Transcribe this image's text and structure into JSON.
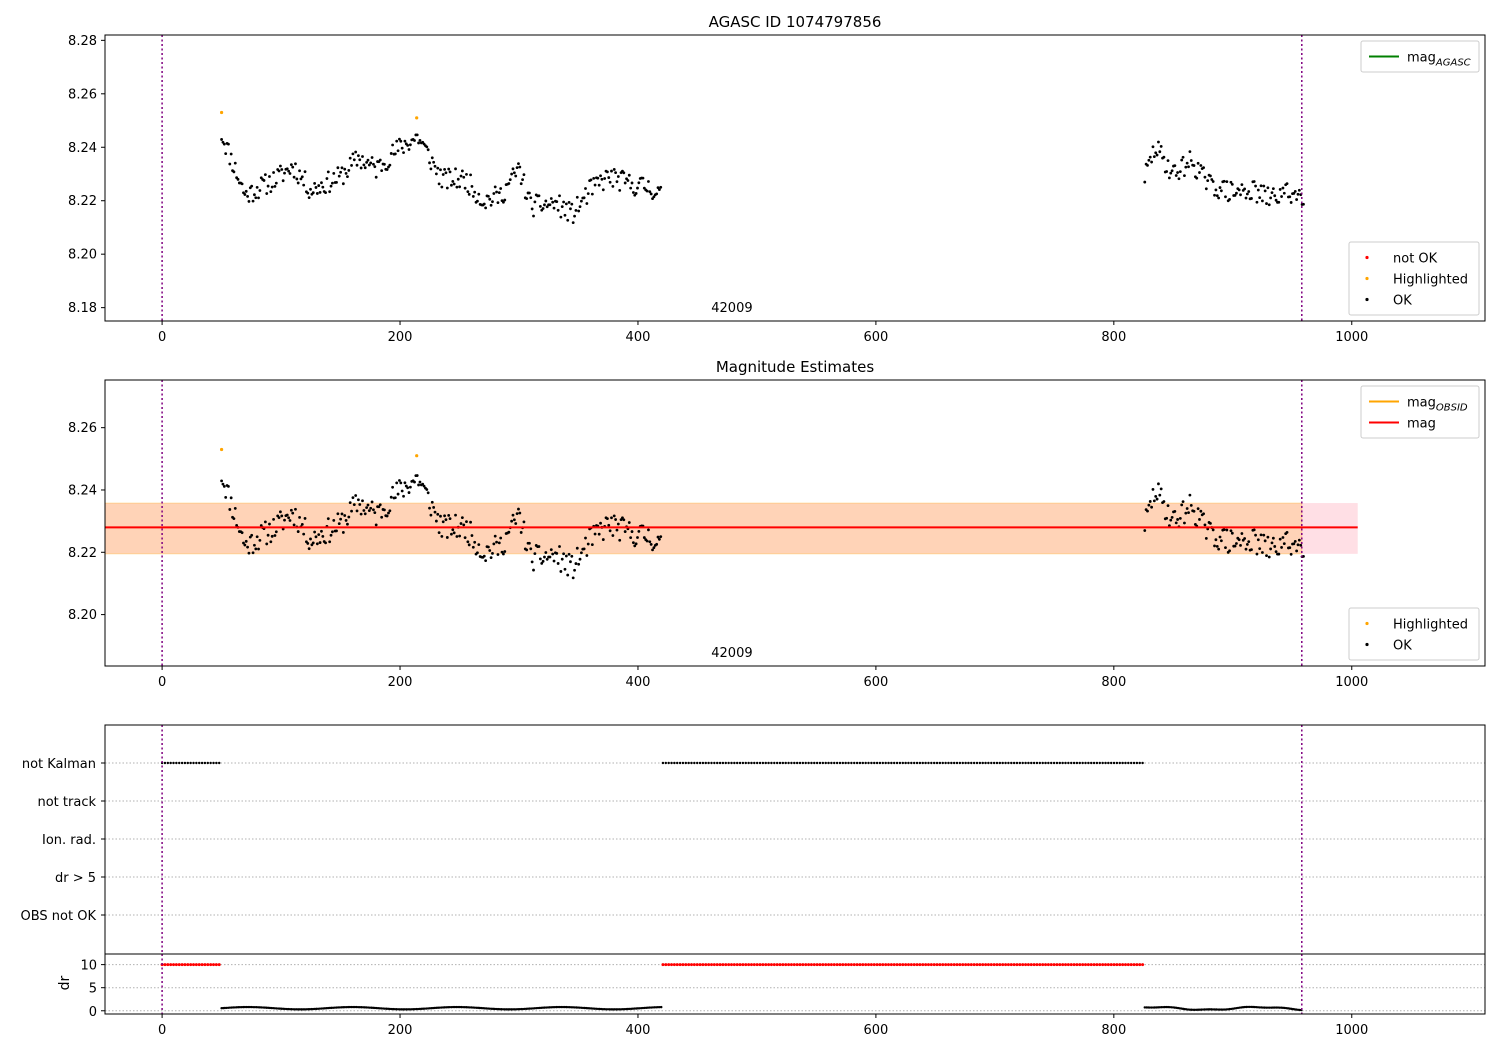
{
  "figure_title": "AGASC ID 1074797856",
  "chart_data": [
    {
      "id": "panel1",
      "type": "scatter",
      "title": "AGASC ID 1074797856",
      "xlim": [
        -48,
        1112
      ],
      "ylim": [
        8.175,
        8.282
      ],
      "xticks": [
        0,
        200,
        400,
        600,
        800,
        1000
      ],
      "yticks": [
        8.18,
        8.2,
        8.22,
        8.24,
        8.26,
        8.28
      ],
      "ytick_decimals": 2,
      "vlines": [
        0,
        958
      ],
      "obsid_label": {
        "text": "42009",
        "x": 479
      },
      "legend_top": {
        "placement": "upper right",
        "entries": [
          {
            "label": "mag",
            "sub": "AGASC",
            "color": "#008000"
          }
        ]
      },
      "legend_bottom": {
        "placement": "lower right",
        "entries": [
          {
            "label": "not OK",
            "color": "#ff0000"
          },
          {
            "label": "Highlighted",
            "color": "#ffa500"
          },
          {
            "label": "OK",
            "color": "#000000"
          }
        ]
      },
      "highlighted": [
        [
          50,
          8.253
        ],
        [
          214,
          8.251
        ]
      ],
      "ok_segments": [
        {
          "x0": 50,
          "x1": 420,
          "anchors": [
            [
              50,
              8.245
            ],
            [
              70,
              8.222
            ],
            [
              95,
              8.228
            ],
            [
              110,
              8.233
            ],
            [
              125,
              8.224
            ],
            [
              150,
              8.229
            ],
            [
              165,
              8.236
            ],
            [
              180,
              8.232
            ],
            [
              200,
              8.24
            ],
            [
              215,
              8.244
            ],
            [
              235,
              8.228
            ],
            [
              255,
              8.228
            ],
            [
              270,
              8.22
            ],
            [
              285,
              8.222
            ],
            [
              300,
              8.232
            ],
            [
              310,
              8.218
            ],
            [
              330,
              8.219
            ],
            [
              345,
              8.215
            ],
            [
              360,
              8.224
            ],
            [
              375,
              8.229
            ],
            [
              395,
              8.226
            ],
            [
              410,
              8.225
            ],
            [
              420,
              8.222
            ]
          ],
          "noise": 0.004,
          "seed": 11
        },
        {
          "x0": 826,
          "x1": 960,
          "anchors": [
            [
              826,
              8.229
            ],
            [
              835,
              8.24
            ],
            [
              850,
              8.23
            ],
            [
              865,
              8.235
            ],
            [
              880,
              8.226
            ],
            [
              900,
              8.223
            ],
            [
              915,
              8.224
            ],
            [
              930,
              8.221
            ],
            [
              945,
              8.223
            ],
            [
              960,
              8.222
            ]
          ],
          "noise": 0.004,
          "seed": 29
        }
      ]
    },
    {
      "id": "panel2",
      "type": "scatter",
      "title": "Magnitude Estimates",
      "xlim": [
        -48,
        1112
      ],
      "ylim": [
        8.1835,
        8.2753
      ],
      "xticks": [
        0,
        200,
        400,
        600,
        800,
        1000
      ],
      "yticks": [
        8.2,
        8.22,
        8.24,
        8.26
      ],
      "ytick_decimals": 2,
      "vlines": [
        0,
        958
      ],
      "obsid_label": {
        "text": "42009",
        "x": 479
      },
      "mag_line": 8.228,
      "band": {
        "low": 8.2195,
        "high": 8.2358,
        "x0": -48,
        "x1": 1005
      },
      "inner_band": {
        "low": 8.2195,
        "high": 8.2358,
        "x0": -48,
        "x1": 958
      },
      "legend_top": {
        "placement": "upper right",
        "entries": [
          {
            "label": "mag",
            "sub": "OBSID",
            "color": "#ffa500"
          },
          {
            "label": "mag",
            "sub": "",
            "color": "#ff0000"
          }
        ]
      },
      "legend_bottom": {
        "placement": "lower right",
        "entries": [
          {
            "label": "Highlighted",
            "color": "#ffa500"
          },
          {
            "label": "OK",
            "color": "#000000"
          }
        ]
      },
      "highlighted": [
        [
          50,
          8.253
        ],
        [
          214,
          8.251
        ]
      ],
      "ok_segments": [
        {
          "x0": 50,
          "x1": 420,
          "anchors": [
            [
              50,
              8.245
            ],
            [
              70,
              8.222
            ],
            [
              95,
              8.228
            ],
            [
              110,
              8.233
            ],
            [
              125,
              8.224
            ],
            [
              150,
              8.229
            ],
            [
              165,
              8.236
            ],
            [
              180,
              8.232
            ],
            [
              200,
              8.24
            ],
            [
              215,
              8.244
            ],
            [
              235,
              8.228
            ],
            [
              255,
              8.228
            ],
            [
              270,
              8.22
            ],
            [
              285,
              8.222
            ],
            [
              300,
              8.232
            ],
            [
              310,
              8.218
            ],
            [
              330,
              8.219
            ],
            [
              345,
              8.215
            ],
            [
              360,
              8.224
            ],
            [
              375,
              8.229
            ],
            [
              395,
              8.226
            ],
            [
              410,
              8.225
            ],
            [
              420,
              8.222
            ]
          ],
          "noise": 0.004,
          "seed": 11
        },
        {
          "x0": 826,
          "x1": 960,
          "anchors": [
            [
              826,
              8.229
            ],
            [
              835,
              8.24
            ],
            [
              850,
              8.23
            ],
            [
              865,
              8.235
            ],
            [
              880,
              8.226
            ],
            [
              900,
              8.223
            ],
            [
              915,
              8.224
            ],
            [
              930,
              8.221
            ],
            [
              945,
              8.223
            ],
            [
              960,
              8.222
            ]
          ],
          "noise": 0.004,
          "seed": 29
        }
      ]
    },
    {
      "id": "panel3",
      "type": "scatter",
      "title": "",
      "xlim": [
        -48,
        1112
      ],
      "categories": [
        "not Kalman",
        "not track",
        "Ion. rad.",
        "dr > 5",
        "OBS not OK"
      ],
      "vlines": [
        0,
        958
      ],
      "flag_segments": [
        {
          "category": "not Kalman",
          "x0": 0,
          "x1": 48
        },
        {
          "category": "not Kalman",
          "x0": 421,
          "x1": 826
        }
      ]
    },
    {
      "id": "panel4",
      "type": "scatter",
      "title": "",
      "ylabel": "dr",
      "xlim": [
        -48,
        1112
      ],
      "ylim": [
        -0.7,
        12.3
      ],
      "xticks": [
        0,
        200,
        400,
        600,
        800,
        1000
      ],
      "yticks": [
        0,
        5,
        10
      ],
      "vlines": [
        0,
        958
      ],
      "red_segments": [
        {
          "x0": 0,
          "x1": 48,
          "y": 10
        },
        {
          "x0": 421,
          "x1": 826,
          "y": 10
        }
      ],
      "black_segments": [
        {
          "x0": 50,
          "x1": 420,
          "base": 0.55,
          "amp": 0.25
        },
        {
          "x0": 826,
          "x1": 958,
          "base": 0.5,
          "amp": 0.3
        }
      ]
    }
  ]
}
